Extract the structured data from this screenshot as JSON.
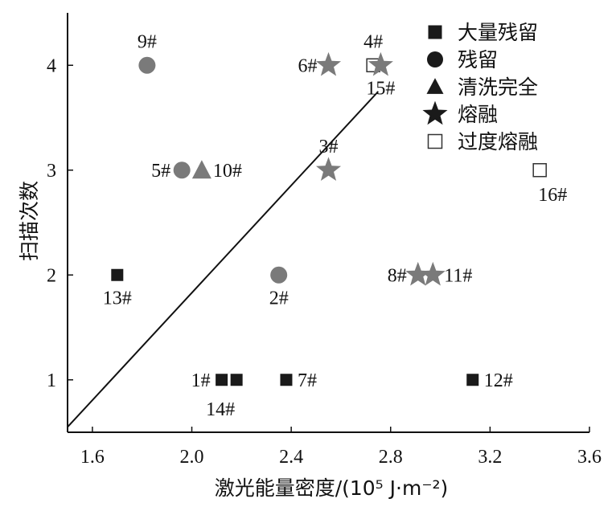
{
  "chart_data": {
    "type": "scatter",
    "xlabel": "激光能量密度/(10⁵ J·m⁻²)",
    "ylabel": "扫描次数",
    "xlim": [
      1.5,
      3.6
    ],
    "ylim": [
      0.5,
      4.5
    ],
    "xticks": [
      "1.6",
      "2.0",
      "2.4",
      "2.8",
      "3.2",
      "3.6"
    ],
    "yticks": [
      "1",
      "2",
      "3",
      "4"
    ],
    "grid": false,
    "legend_position": "top-right",
    "colors": {
      "dark": "#1a1a1a",
      "gray": "#7a7a7a",
      "hollow_stroke": "#333333"
    },
    "legend": [
      {
        "label": "大量残留",
        "marker": "square"
      },
      {
        "label": "残留",
        "marker": "circle"
      },
      {
        "label": "清洗完全",
        "marker": "triangle"
      },
      {
        "label": "熔融",
        "marker": "star"
      },
      {
        "label": "过度熔融",
        "marker": "hollow-square"
      }
    ],
    "points": [
      {
        "label": "1#",
        "x": 2.12,
        "y": 1,
        "marker": "square",
        "color": "dark",
        "anchor": "left"
      },
      {
        "label": "14#",
        "x": 2.18,
        "y": 1,
        "marker": "square",
        "color": "dark",
        "anchor": "below-left"
      },
      {
        "label": "7#",
        "x": 2.38,
        "y": 1,
        "marker": "square",
        "color": "dark",
        "anchor": "right"
      },
      {
        "label": "12#",
        "x": 3.13,
        "y": 1,
        "marker": "square",
        "color": "dark",
        "anchor": "right"
      },
      {
        "label": "13#",
        "x": 1.7,
        "y": 2,
        "marker": "square",
        "color": "dark",
        "anchor": "below"
      },
      {
        "label": "2#",
        "x": 2.35,
        "y": 2,
        "marker": "circle",
        "color": "gray",
        "anchor": "below"
      },
      {
        "label": "8#",
        "x": 2.91,
        "y": 2,
        "marker": "star",
        "color": "gray",
        "anchor": "left"
      },
      {
        "label": "11#",
        "x": 2.97,
        "y": 2,
        "marker": "star",
        "color": "gray",
        "anchor": "right"
      },
      {
        "label": "5#",
        "x": 1.96,
        "y": 3,
        "marker": "circle",
        "color": "gray",
        "anchor": "left"
      },
      {
        "label": "10#",
        "x": 2.04,
        "y": 3,
        "marker": "triangle",
        "color": "gray",
        "anchor": "right"
      },
      {
        "label": "3#",
        "x": 2.55,
        "y": 3,
        "marker": "star",
        "color": "gray",
        "anchor": "above"
      },
      {
        "label": "16#",
        "x": 3.4,
        "y": 3,
        "marker": "hollow-square",
        "color": "hollow_stroke",
        "anchor": "below-right"
      },
      {
        "label": "9#",
        "x": 1.82,
        "y": 4,
        "marker": "circle",
        "color": "gray",
        "anchor": "above"
      },
      {
        "label": "6#",
        "x": 2.55,
        "y": 4,
        "marker": "star",
        "color": "gray",
        "anchor": "left"
      },
      {
        "label": "4#",
        "x": 2.73,
        "y": 4,
        "marker": "hollow-square",
        "color": "hollow_stroke",
        "anchor": "above"
      },
      {
        "label": "15#",
        "x": 2.76,
        "y": 4,
        "marker": "star",
        "color": "gray",
        "anchor": "below"
      }
    ],
    "line": {
      "x": [
        1.5,
        2.75
      ],
      "y": [
        0.55,
        3.75
      ]
    }
  }
}
